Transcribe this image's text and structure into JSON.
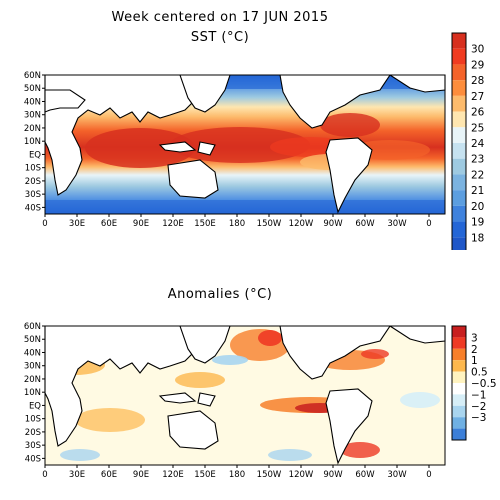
{
  "header": {
    "title": "Week centered on 17 JUN 2015",
    "sst_title": "SST (°C)",
    "anom_title": "Anomalies (°C)"
  },
  "axes": {
    "lat_labels": [
      "60N",
      "50N",
      "40N",
      "30N",
      "20N",
      "10N",
      "EQ",
      "10S",
      "20S",
      "30S",
      "40S"
    ],
    "lat_values": [
      60,
      50,
      40,
      30,
      20,
      10,
      0,
      -10,
      -20,
      -30,
      -40
    ],
    "lon_labels": [
      "0",
      "30E",
      "60E",
      "90E",
      "120E",
      "150E",
      "180",
      "150W",
      "120W",
      "90W",
      "60W",
      "30W",
      "0"
    ],
    "lon_values": [
      0,
      30,
      60,
      90,
      120,
      150,
      180,
      210,
      240,
      270,
      300,
      330,
      360
    ],
    "lat_range": [
      -45,
      60
    ],
    "lon_range": [
      0,
      375
    ]
  },
  "sst_colorbar": {
    "labels": [
      "30",
      "29",
      "28",
      "27",
      "26",
      "25",
      "24",
      "23",
      "22",
      "21",
      "20",
      "19",
      "18"
    ],
    "colors": [
      "#d7301f",
      "#f03b20",
      "#f4632a",
      "#fd8d3c",
      "#fdbb6c",
      "#fee6b0",
      "#e8f4f8",
      "#c6e2f0",
      "#9ecae1",
      "#7bb3e0",
      "#5c9ee0",
      "#3f82dd",
      "#2466d6",
      "#1f57c8"
    ]
  },
  "anom_colorbar": {
    "labels": [
      "3",
      "2",
      "1",
      "0.5",
      "−0.5",
      "−1",
      "−2",
      "−3"
    ],
    "colors": [
      "#c81f1f",
      "#ee3a24",
      "#f77f2a",
      "#fdb84e",
      "#fff3c0",
      "#ffffff",
      "#d6eef7",
      "#a9d5ef",
      "#6fb0e3",
      "#3c7fd8"
    ]
  }
}
